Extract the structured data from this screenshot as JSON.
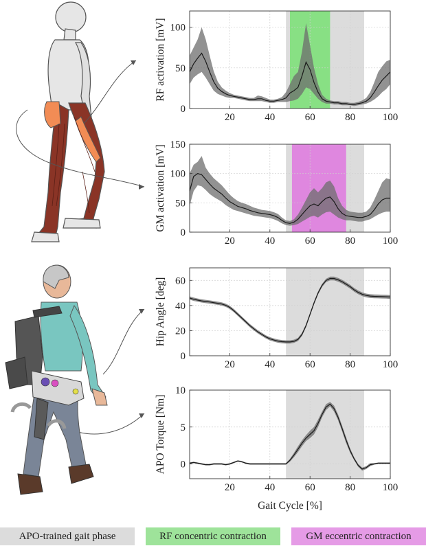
{
  "figure": {
    "legend": {
      "apo": "APO-trained gait phase",
      "rf": "RF concentric contraction",
      "gm": "GM eccentric contraction"
    },
    "colors": {
      "apo_phase": "#dcdcdc",
      "rf_band": "#7ee07a",
      "gm_band": "#df7ddf",
      "mean_line": "#1a1a1a",
      "sd_band": "#6e6e6e",
      "muscle": "#8a3426",
      "highlight_muscle": "#f28c55",
      "shirt": "#79c6c0",
      "pants": "#7a8597",
      "exo": "#5a5a5a"
    }
  },
  "chart_data": [
    {
      "type": "line",
      "panel": "rf",
      "ylabel": "RF activation [mV]",
      "xlabel": "",
      "xlim": [
        0,
        100
      ],
      "ylim": [
        0,
        120
      ],
      "xticks": [
        20,
        40,
        60,
        80,
        100
      ],
      "yticks": [
        0,
        50,
        100
      ],
      "grid": true,
      "apo_phase": [
        48,
        87
      ],
      "contraction_band": [
        50,
        70
      ],
      "series": [
        {
          "x": [
            0,
            2,
            4,
            6,
            8,
            10,
            12,
            14,
            16,
            18,
            20,
            22,
            24,
            26,
            28,
            30,
            32,
            34,
            36,
            38,
            40,
            42,
            44,
            46,
            48,
            50,
            52,
            54,
            56,
            58,
            60,
            62,
            64,
            66,
            68,
            70,
            72,
            74,
            76,
            78,
            80,
            82,
            84,
            86,
            88,
            90,
            92,
            94,
            96,
            98,
            100
          ],
          "mean": [
            45,
            55,
            62,
            68,
            58,
            45,
            33,
            25,
            21,
            18,
            16,
            15,
            14,
            13,
            12,
            11,
            11,
            12,
            12,
            10,
            9,
            9,
            10,
            11,
            13,
            19,
            22,
            26,
            40,
            57,
            48,
            32,
            20,
            12,
            9,
            8,
            7,
            7,
            6,
            6,
            5,
            5,
            6,
            7,
            9,
            13,
            20,
            28,
            35,
            40,
            45
          ],
          "upper": [
            65,
            75,
            85,
            100,
            85,
            65,
            46,
            33,
            26,
            22,
            19,
            17,
            16,
            15,
            14,
            13,
            13,
            16,
            15,
            13,
            11,
            11,
            12,
            14,
            20,
            30,
            40,
            45,
            70,
            105,
            78,
            50,
            30,
            17,
            12,
            10,
            9,
            9,
            8,
            8,
            7,
            7,
            8,
            10,
            13,
            20,
            32,
            45,
            52,
            58,
            60
          ],
          "lower": [
            30,
            38,
            42,
            45,
            38,
            30,
            22,
            18,
            16,
            14,
            13,
            13,
            12,
            11,
            10,
            9,
            9,
            9,
            9,
            8,
            7,
            7,
            8,
            8,
            8,
            9,
            10,
            12,
            18,
            26,
            24,
            18,
            12,
            8,
            6,
            6,
            5,
            5,
            4,
            4,
            4,
            3,
            4,
            5,
            6,
            8,
            11,
            15,
            20,
            24,
            30
          ]
        }
      ]
    },
    {
      "type": "line",
      "panel": "gm",
      "ylabel": "GM activation [mV]",
      "xlabel": "",
      "xlim": [
        0,
        100
      ],
      "ylim": [
        0,
        150
      ],
      "xticks": [
        20,
        40,
        60,
        80,
        100
      ],
      "yticks": [
        0,
        50,
        100,
        150
      ],
      "grid": true,
      "apo_phase": [
        48,
        87
      ],
      "contraction_band": [
        51,
        78
      ],
      "series": [
        {
          "x": [
            0,
            2,
            4,
            6,
            8,
            10,
            12,
            14,
            16,
            18,
            20,
            22,
            24,
            26,
            28,
            30,
            32,
            34,
            36,
            38,
            40,
            42,
            44,
            46,
            48,
            50,
            52,
            54,
            56,
            58,
            60,
            62,
            64,
            66,
            68,
            70,
            72,
            74,
            76,
            78,
            80,
            82,
            84,
            86,
            88,
            90,
            92,
            94,
            96,
            98,
            100
          ],
          "mean": [
            70,
            95,
            100,
            98,
            90,
            82,
            75,
            70,
            65,
            58,
            52,
            48,
            44,
            42,
            40,
            37,
            35,
            33,
            32,
            31,
            30,
            28,
            25,
            20,
            16,
            15,
            17,
            22,
            30,
            38,
            45,
            48,
            45,
            52,
            58,
            60,
            52,
            40,
            32,
            28,
            27,
            26,
            25,
            25,
            27,
            30,
            38,
            48,
            55,
            58,
            58
          ],
          "upper": [
            100,
            115,
            120,
            130,
            110,
            100,
            92,
            86,
            80,
            72,
            64,
            58,
            53,
            50,
            48,
            45,
            42,
            40,
            38,
            37,
            36,
            34,
            31,
            25,
            20,
            19,
            22,
            30,
            42,
            55,
            68,
            75,
            68,
            75,
            85,
            88,
            78,
            58,
            45,
            38,
            35,
            34,
            33,
            33,
            35,
            42,
            55,
            70,
            85,
            92,
            90
          ],
          "lower": [
            45,
            70,
            80,
            78,
            72,
            65,
            60,
            56,
            52,
            46,
            42,
            38,
            36,
            34,
            32,
            30,
            28,
            27,
            26,
            25,
            24,
            22,
            19,
            15,
            12,
            11,
            12,
            14,
            18,
            22,
            26,
            28,
            25,
            30,
            34,
            35,
            30,
            25,
            22,
            20,
            20,
            19,
            18,
            18,
            20,
            22,
            26,
            30,
            33,
            35,
            35
          ]
        }
      ]
    },
    {
      "type": "line",
      "panel": "hip",
      "ylabel": "Hip Angle [deg]",
      "xlabel": "",
      "xlim": [
        0,
        100
      ],
      "ylim": [
        0,
        70
      ],
      "xticks": [
        20,
        40,
        60,
        80,
        100
      ],
      "yticks": [
        0,
        20,
        40,
        60
      ],
      "grid": true,
      "apo_phase": [
        48,
        87
      ],
      "series": [
        {
          "x": [
            0,
            2,
            4,
            6,
            8,
            10,
            12,
            14,
            16,
            18,
            20,
            22,
            24,
            26,
            28,
            30,
            32,
            34,
            36,
            38,
            40,
            42,
            44,
            46,
            48,
            50,
            52,
            54,
            56,
            58,
            60,
            62,
            64,
            66,
            68,
            70,
            72,
            74,
            76,
            78,
            80,
            82,
            84,
            86,
            88,
            90,
            92,
            94,
            96,
            98,
            100
          ],
          "mean": [
            46,
            45,
            44.3,
            43.7,
            43.2,
            42.8,
            42.3,
            41.8,
            41.2,
            40.2,
            38.5,
            36,
            33,
            30,
            27,
            24,
            21.5,
            19,
            17,
            15,
            13.5,
            12.5,
            11.7,
            11.2,
            11,
            11,
            11.5,
            13,
            17,
            24,
            33,
            42,
            50,
            56,
            60,
            61.5,
            61.5,
            60.5,
            59,
            57,
            55,
            52.5,
            50.5,
            49,
            48,
            47.5,
            47.3,
            47.2,
            47.1,
            47,
            46.8
          ],
          "upper": [
            47.3,
            46.3,
            45.6,
            45,
            44.5,
            44.1,
            43.6,
            43.1,
            42.5,
            41.5,
            39.8,
            37.3,
            34.3,
            31.3,
            28.3,
            25.3,
            22.8,
            20.3,
            18.3,
            16.3,
            14.8,
            13.8,
            13,
            12.5,
            12.3,
            12.3,
            12.8,
            14.3,
            18.3,
            25.3,
            34.3,
            43.3,
            51.3,
            57.3,
            61.3,
            63,
            63,
            62,
            60.5,
            58.5,
            56.5,
            54,
            52,
            50.5,
            49.5,
            49,
            48.8,
            48.7,
            48.6,
            48.5,
            48.3
          ],
          "lower": [
            44.7,
            43.7,
            43,
            42.4,
            41.9,
            41.5,
            41,
            40.5,
            39.9,
            38.9,
            37.2,
            34.7,
            31.7,
            28.7,
            25.7,
            22.7,
            20.2,
            17.7,
            15.7,
            13.7,
            12.2,
            11.2,
            10.4,
            9.9,
            9.7,
            9.7,
            10.2,
            11.7,
            15.7,
            22.7,
            31.7,
            40.7,
            48.7,
            54.7,
            58.7,
            60,
            60,
            59,
            57.5,
            55.5,
            53.5,
            51,
            49,
            47.5,
            46.5,
            46,
            45.8,
            45.7,
            45.6,
            45.5,
            45.3
          ]
        }
      ]
    },
    {
      "type": "line",
      "panel": "torque",
      "ylabel": "APO Torque [Nm]",
      "xlabel": "Gait Cycle [%]",
      "xlim": [
        0,
        100
      ],
      "ylim": [
        -2,
        10
      ],
      "xticks": [
        20,
        40,
        60,
        80,
        100
      ],
      "yticks": [
        0,
        5,
        10
      ],
      "grid": true,
      "apo_phase": [
        48,
        87
      ],
      "series": [
        {
          "x": [
            0,
            2,
            4,
            6,
            8,
            10,
            12,
            14,
            16,
            18,
            20,
            22,
            24,
            26,
            28,
            30,
            32,
            34,
            36,
            38,
            40,
            42,
            44,
            46,
            48,
            50,
            52,
            54,
            56,
            58,
            60,
            62,
            64,
            66,
            68,
            70,
            72,
            74,
            76,
            78,
            80,
            82,
            84,
            86,
            88,
            90,
            92,
            94,
            96,
            98,
            100
          ],
          "mean": [
            0.1,
            0.2,
            0.1,
            0,
            -0.1,
            -0.1,
            0,
            0,
            0,
            -0.1,
            0,
            0.2,
            0.4,
            0.3,
            0.1,
            0,
            0,
            0,
            0,
            0,
            0,
            0,
            0,
            0,
            0,
            0.5,
            1.2,
            2,
            2.8,
            3.5,
            4,
            4.5,
            5.5,
            6.7,
            7.7,
            8.1,
            7.5,
            6.3,
            4.8,
            3.2,
            1.8,
            0.7,
            -0.2,
            -0.7,
            -0.5,
            -0.1,
            0,
            0.1,
            0.1,
            0.1,
            0.1
          ],
          "upper": [
            0.2,
            0.3,
            0.2,
            0.1,
            0,
            0,
            0.1,
            0.1,
            0.1,
            0,
            0.1,
            0.3,
            0.5,
            0.4,
            0.2,
            0.1,
            0.1,
            0.1,
            0.1,
            0.1,
            0.1,
            0.1,
            0.1,
            0.1,
            0.1,
            0.7,
            1.5,
            2.4,
            3.2,
            3.9,
            4.5,
            5,
            6,
            7.1,
            8.1,
            8.4,
            7.9,
            6.7,
            5.2,
            3.6,
            2.1,
            0.9,
            0,
            -0.5,
            -0.3,
            0.1,
            0.1,
            0.2,
            0.2,
            0.2,
            0.2
          ],
          "lower": [
            0,
            0.1,
            0,
            -0.1,
            -0.2,
            -0.2,
            -0.1,
            -0.1,
            -0.1,
            -0.2,
            -0.1,
            0.1,
            0.3,
            0.2,
            0,
            -0.1,
            -0.1,
            -0.1,
            -0.1,
            -0.1,
            -0.1,
            -0.1,
            -0.1,
            -0.1,
            -0.1,
            0.3,
            0.9,
            1.6,
            2.4,
            3.1,
            3.5,
            4,
            5,
            6.3,
            7.3,
            7.8,
            7.1,
            5.9,
            4.4,
            2.8,
            1.5,
            0.5,
            -0.4,
            -0.9,
            -0.7,
            -0.3,
            -0.1,
            0,
            0,
            0,
            0
          ]
        }
      ]
    }
  ]
}
